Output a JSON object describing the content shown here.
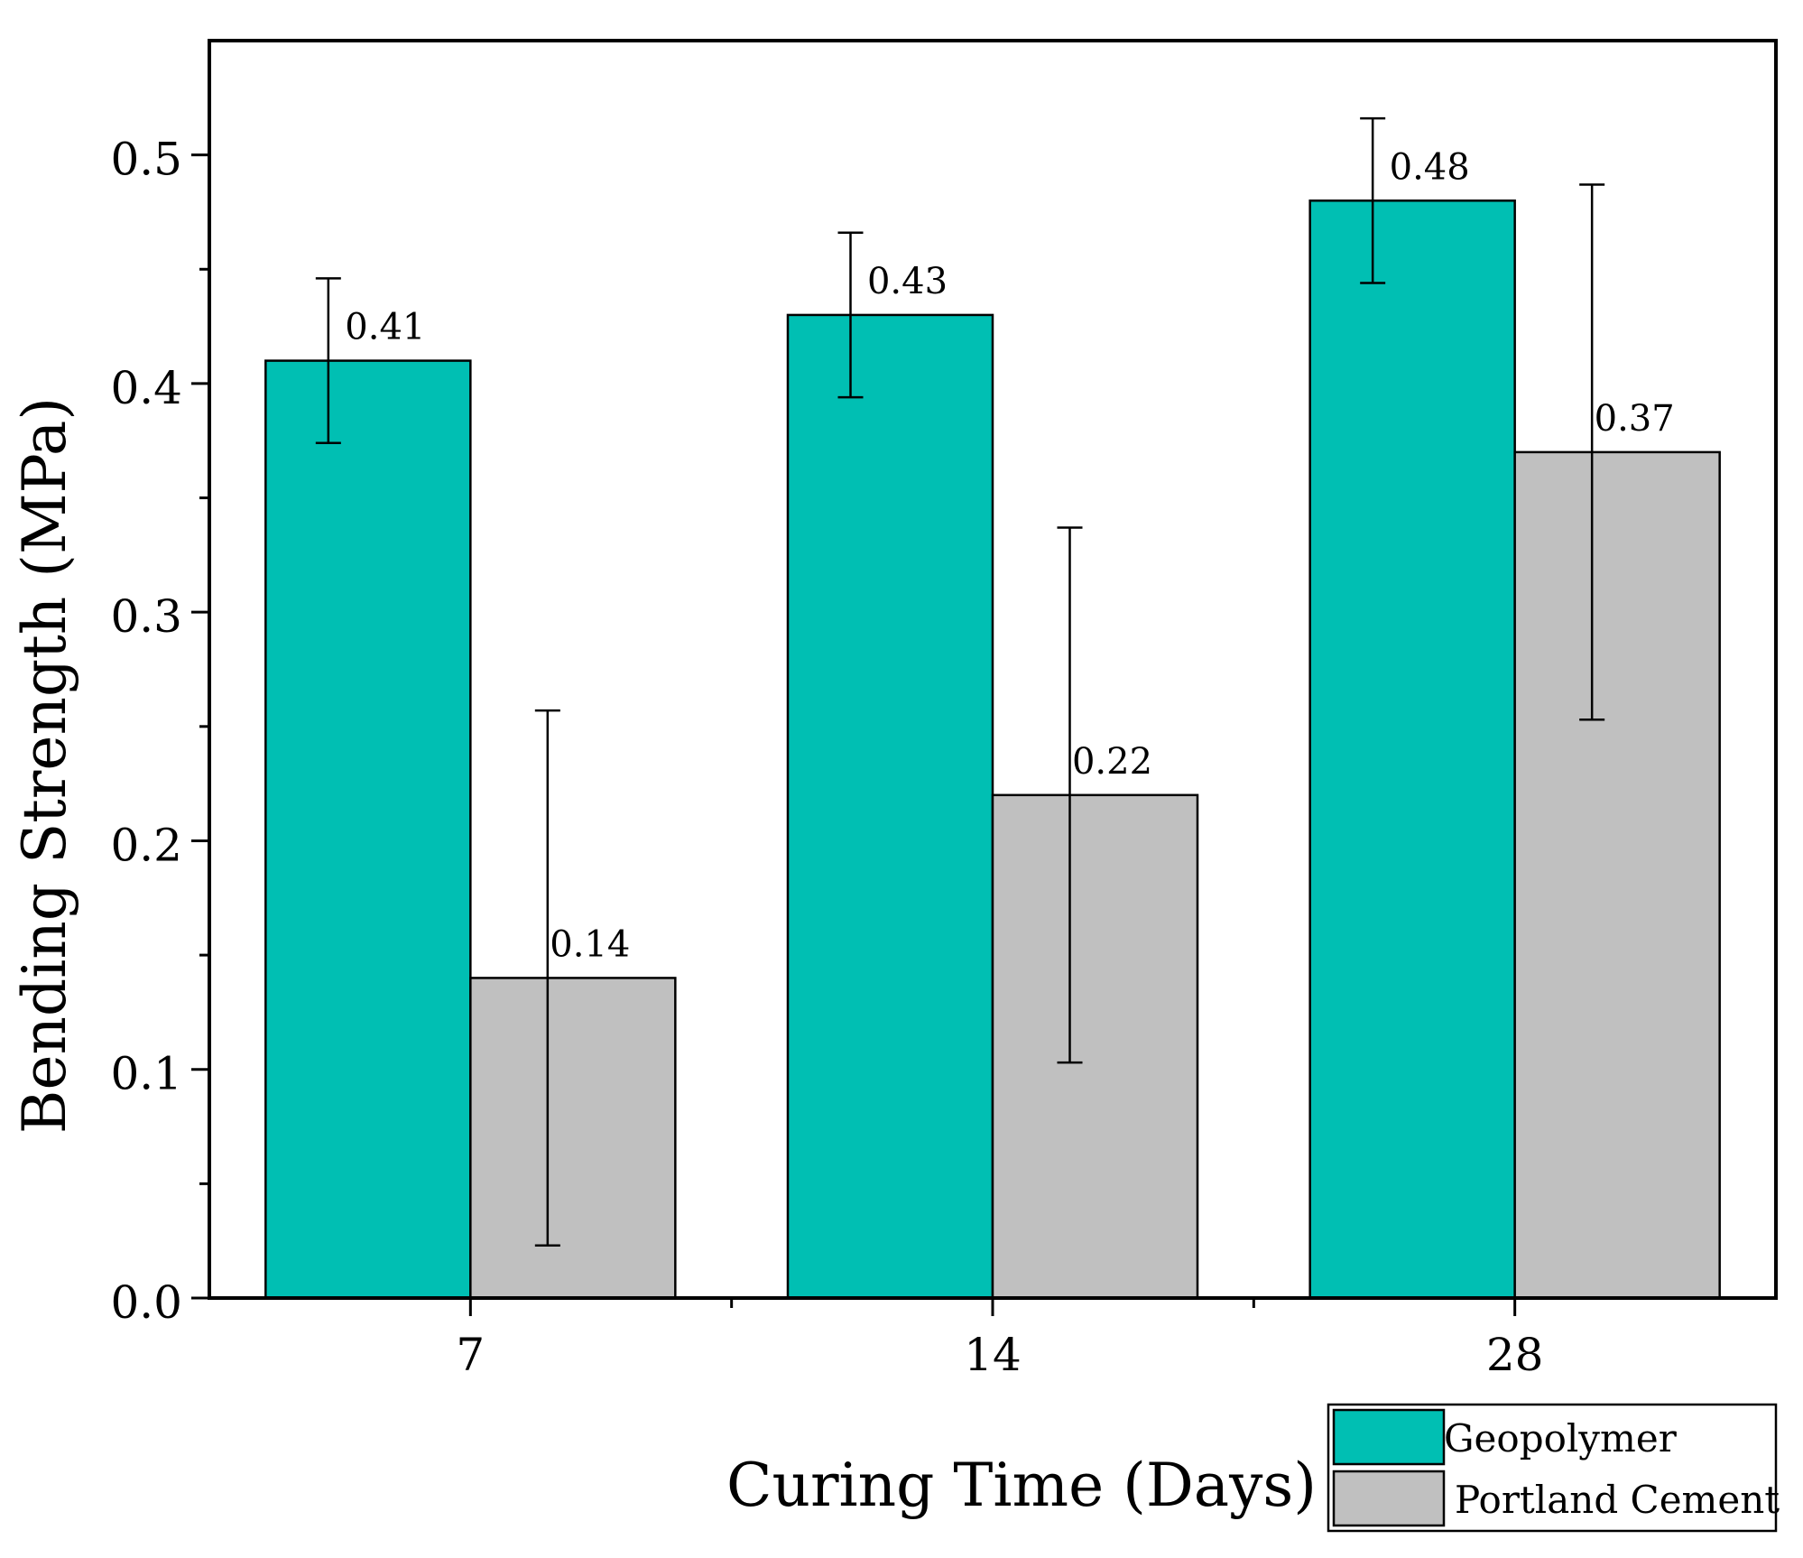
{
  "chart_data": {
    "type": "bar",
    "title": "",
    "xlabel": "Curing Time (Days)",
    "ylabel": "Bending Strength (MPa)",
    "categories": [
      "7",
      "14",
      "28"
    ],
    "ylim": [
      0,
      0.55
    ],
    "yticks": [
      0.0,
      0.1,
      0.2,
      0.3,
      0.4,
      0.5
    ],
    "ytick_labels": [
      "0.0",
      "0.1",
      "0.2",
      "0.3",
      "0.4",
      "0.5"
    ],
    "grid": false,
    "legend_position": "bottom-right",
    "series": [
      {
        "name": "Geopolymer",
        "color": "#00BFB3",
        "values": [
          0.41,
          0.43,
          0.48
        ],
        "errors": [
          0.036,
          0.036,
          0.036
        ],
        "value_labels": [
          "0.41",
          "0.43",
          "0.48"
        ]
      },
      {
        "name": "Portland Cement",
        "color": "#C0C0C0",
        "values": [
          0.14,
          0.22,
          0.37
        ],
        "errors": [
          0.117,
          0.117,
          0.117
        ],
        "value_labels": [
          "0.14",
          "0.22",
          "0.37"
        ]
      }
    ]
  }
}
